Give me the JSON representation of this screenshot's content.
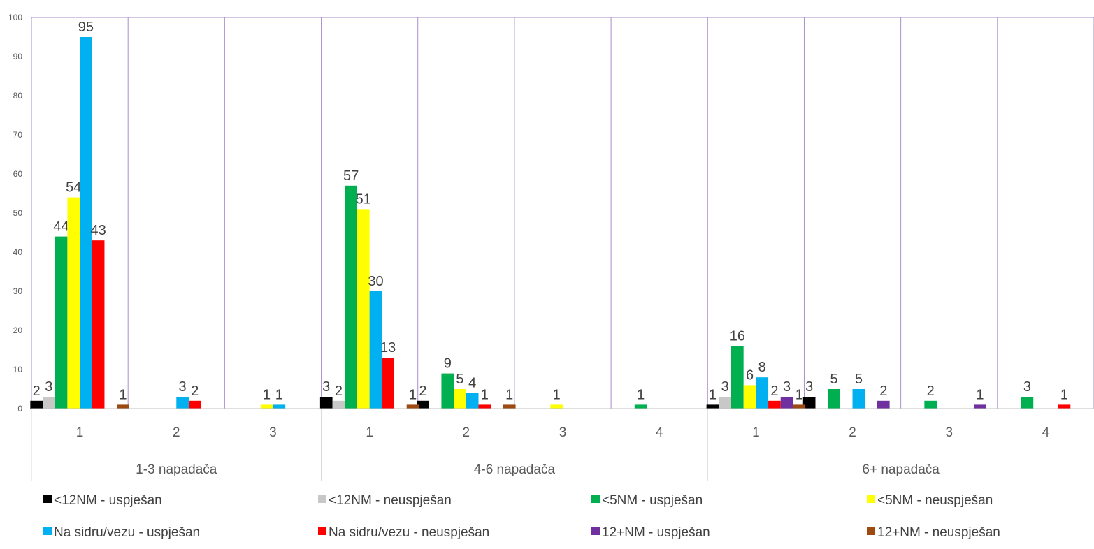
{
  "chart_data": {
    "type": "bar",
    "title": "",
    "xlabel": "",
    "ylabel": "",
    "ylim": [
      0,
      100
    ],
    "yticks": [
      0,
      10,
      20,
      30,
      40,
      50,
      60,
      70,
      80,
      90,
      100
    ],
    "grid": "vertical group separators",
    "legend_position": "bottom",
    "groups": [
      {
        "label": "1-3 napadača",
        "categories": [
          "1",
          "2",
          "3"
        ]
      },
      {
        "label": "4-6 napadača",
        "categories": [
          "1",
          "2",
          "3",
          "4"
        ]
      },
      {
        "label": "6+ napadača",
        "categories": [
          "1",
          "2",
          "3",
          "4"
        ]
      }
    ],
    "series": [
      {
        "name": "<12NM - uspješan",
        "color": "#000000",
        "values": [
          2,
          0,
          0,
          3,
          2,
          0,
          0,
          1,
          3,
          0,
          0
        ]
      },
      {
        "name": "<12NM - neuspješan",
        "color": "#c8c8c8",
        "values": [
          3,
          0,
          0,
          2,
          0,
          0,
          0,
          3,
          0,
          0,
          0
        ]
      },
      {
        "name": "<5NM - uspješan",
        "color": "#00b050",
        "values": [
          44,
          0,
          0,
          57,
          9,
          0,
          1,
          16,
          5,
          2,
          3
        ]
      },
      {
        "name": "<5NM - neuspješan",
        "color": "#ffff00",
        "values": [
          54,
          0,
          1,
          51,
          5,
          1,
          0,
          6,
          0,
          0,
          0
        ]
      },
      {
        "name": "Na sidru/vezu - uspješan",
        "color": "#00b0f0",
        "values": [
          95,
          3,
          1,
          30,
          4,
          0,
          0,
          8,
          5,
          0,
          0
        ]
      },
      {
        "name": "Na sidru/vezu - neuspješan",
        "color": "#ff0000",
        "values": [
          43,
          2,
          0,
          13,
          1,
          0,
          0,
          2,
          0,
          0,
          1
        ]
      },
      {
        "name": "12+NM - uspješan",
        "color": "#7030a0",
        "values": [
          0,
          0,
          0,
          0,
          0,
          0,
          0,
          3,
          2,
          1,
          0
        ]
      },
      {
        "name": "12+NM - neuspješan",
        "color": "#9c4a12",
        "values": [
          1,
          0,
          0,
          1,
          1,
          0,
          0,
          1,
          0,
          0,
          0
        ]
      }
    ]
  }
}
